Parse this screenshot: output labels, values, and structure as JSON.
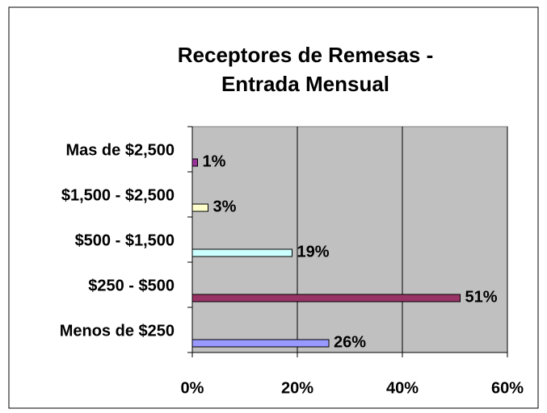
{
  "chart_data": {
    "type": "bar",
    "orientation": "horizontal",
    "title": [
      "Receptores de Remesas -",
      "Entrada Mensual"
    ],
    "categories": [
      "Menos de $250",
      "$250 - $500",
      "$500 -  $1,500",
      "$1,500 - $2,500",
      "Mas de $2,500"
    ],
    "values": [
      26,
      51,
      19,
      3,
      1
    ],
    "value_labels": [
      "26%",
      "51%",
      "19%",
      "3%",
      "1%"
    ],
    "colors": [
      "#9999ff",
      "#993366",
      "#ccffff",
      "#ffffcc",
      "#993399"
    ],
    "xlim": [
      0,
      60
    ],
    "xticks": [
      {
        "value": 0,
        "label": "0%"
      },
      {
        "value": 20,
        "label": "20%"
      },
      {
        "value": 40,
        "label": "40%"
      },
      {
        "value": 60,
        "label": "60%"
      }
    ],
    "grid": true
  }
}
